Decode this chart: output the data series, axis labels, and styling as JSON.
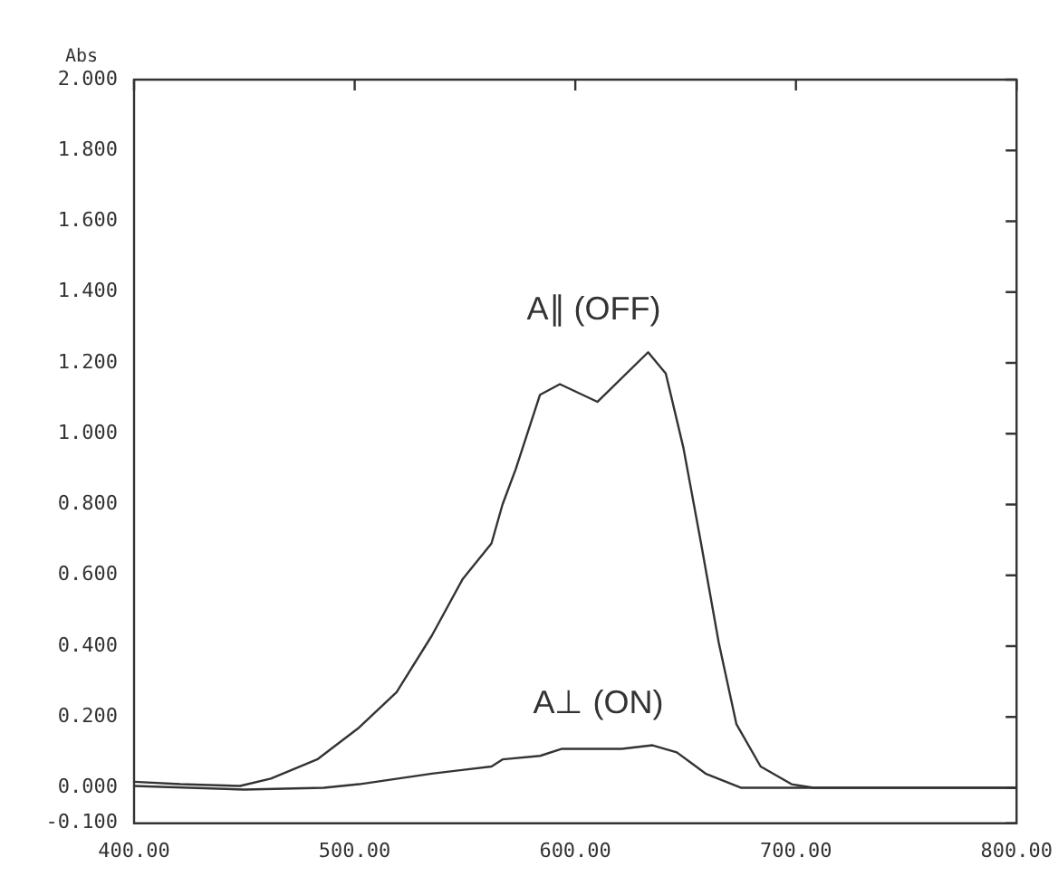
{
  "chart_data": {
    "type": "line",
    "ylabel": "Abs",
    "xlim": [
      400,
      800
    ],
    "ylim": [
      -0.1,
      2.0
    ],
    "xticks": [
      {
        "value": 400,
        "label": "400.00"
      },
      {
        "value": 500,
        "label": "500.00"
      },
      {
        "value": 600,
        "label": "600.00"
      },
      {
        "value": 700,
        "label": "700.00"
      },
      {
        "value": 800,
        "label": "800.00"
      }
    ],
    "yticks": [
      {
        "value": -0.1,
        "label": "-0.100"
      },
      {
        "value": 0,
        "label": "0.000"
      },
      {
        "value": 0.2,
        "label": "0.200"
      },
      {
        "value": 0.4,
        "label": "0.400"
      },
      {
        "value": 0.6,
        "label": "0.600"
      },
      {
        "value": 0.8,
        "label": "0.800"
      },
      {
        "value": 1.0,
        "label": "1.000"
      },
      {
        "value": 1.2,
        "label": "1.200"
      },
      {
        "value": 1.4,
        "label": "1.400"
      },
      {
        "value": 1.6,
        "label": "1.600"
      },
      {
        "value": 1.8,
        "label": "1.800"
      },
      {
        "value": 2.0,
        "label": "2.000"
      }
    ],
    "grid": false,
    "legend": false,
    "marker": "none",
    "line_style": "solid",
    "series": [
      {
        "name": "A∥ (OFF)",
        "color": "#333333",
        "x": [
          400,
          421,
          448,
          462,
          483,
          502,
          519,
          535,
          549,
          562,
          567,
          573,
          584,
          593,
          610,
          633,
          641,
          649,
          657,
          665,
          673,
          684,
          698,
          708,
          740,
          800
        ],
        "values": [
          0.017,
          0.01,
          0.005,
          0.026,
          0.08,
          0.17,
          0.27,
          0.43,
          0.59,
          0.69,
          0.8,
          0.9,
          1.11,
          1.14,
          1.09,
          1.23,
          1.17,
          0.96,
          0.69,
          0.41,
          0.18,
          0.06,
          0.01,
          0.0,
          0.0,
          0.0
        ]
      },
      {
        "name": "A⊥ (ON)",
        "color": "#333333",
        "x": [
          400,
          450,
          486,
          502,
          535,
          562,
          567,
          584,
          594,
          621,
          635,
          646,
          659,
          675,
          720,
          800
        ],
        "values": [
          0.005,
          -0.005,
          0.0,
          0.01,
          0.04,
          0.06,
          0.08,
          0.09,
          0.11,
          0.11,
          0.12,
          0.1,
          0.04,
          0.0,
          0.0,
          0.0
        ]
      }
    ]
  }
}
